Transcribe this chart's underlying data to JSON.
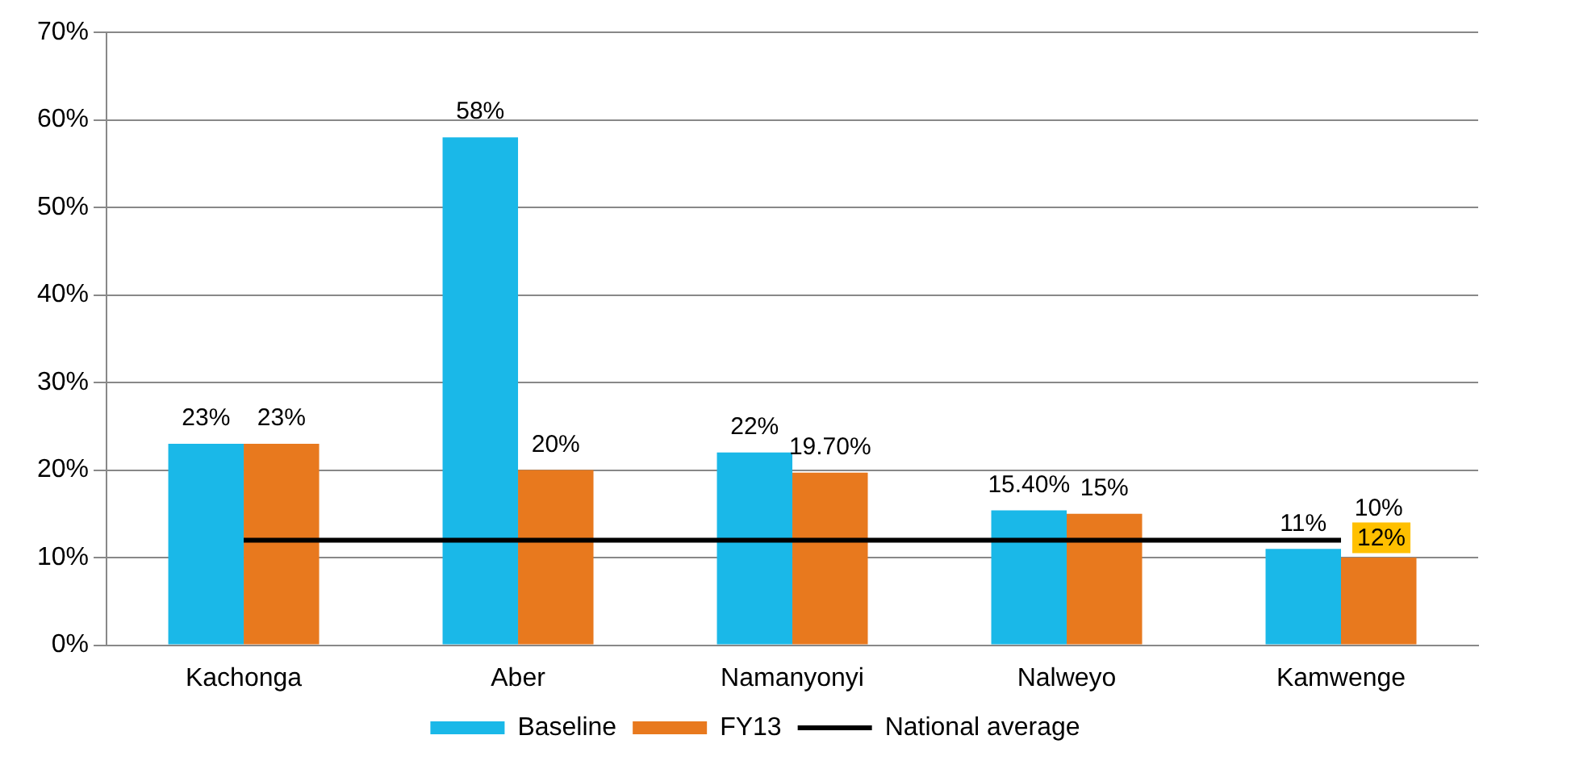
{
  "chart_data": {
    "type": "bar",
    "categories": [
      "Kachonga",
      "Aber",
      "Namanyonyi",
      "Nalweyo",
      "Kamwenge"
    ],
    "series": [
      {
        "name": "Baseline",
        "color": "#1ab8e8",
        "values": [
          23,
          58,
          22,
          15.4,
          11
        ],
        "value_labels": [
          "23%",
          "58%",
          "22%",
          "15.40%",
          "11%"
        ]
      },
      {
        "name": "FY13",
        "color": "#e8791e",
        "values": [
          23,
          20,
          19.7,
          15,
          10
        ],
        "value_labels": [
          "23%",
          "20%",
          "19.70%",
          "15%",
          "10%"
        ]
      },
      {
        "name": "National average",
        "type": "line",
        "color": "#000000",
        "values": [
          12,
          12,
          12,
          12,
          12
        ],
        "value_labels": [
          null,
          null,
          null,
          null,
          "12%"
        ],
        "marker": "none"
      }
    ],
    "ylim": [
      0,
      70
    ],
    "yticks": [
      {
        "value": 0,
        "label": "0%"
      },
      {
        "value": 10,
        "label": "10%"
      },
      {
        "value": 20,
        "label": "20%"
      },
      {
        "value": 30,
        "label": "30%"
      },
      {
        "value": 40,
        "label": "40%"
      },
      {
        "value": 50,
        "label": "50%"
      },
      {
        "value": 60,
        "label": "60%"
      },
      {
        "value": 70,
        "label": "70%"
      }
    ],
    "grid": "y",
    "legend": "bottom"
  }
}
